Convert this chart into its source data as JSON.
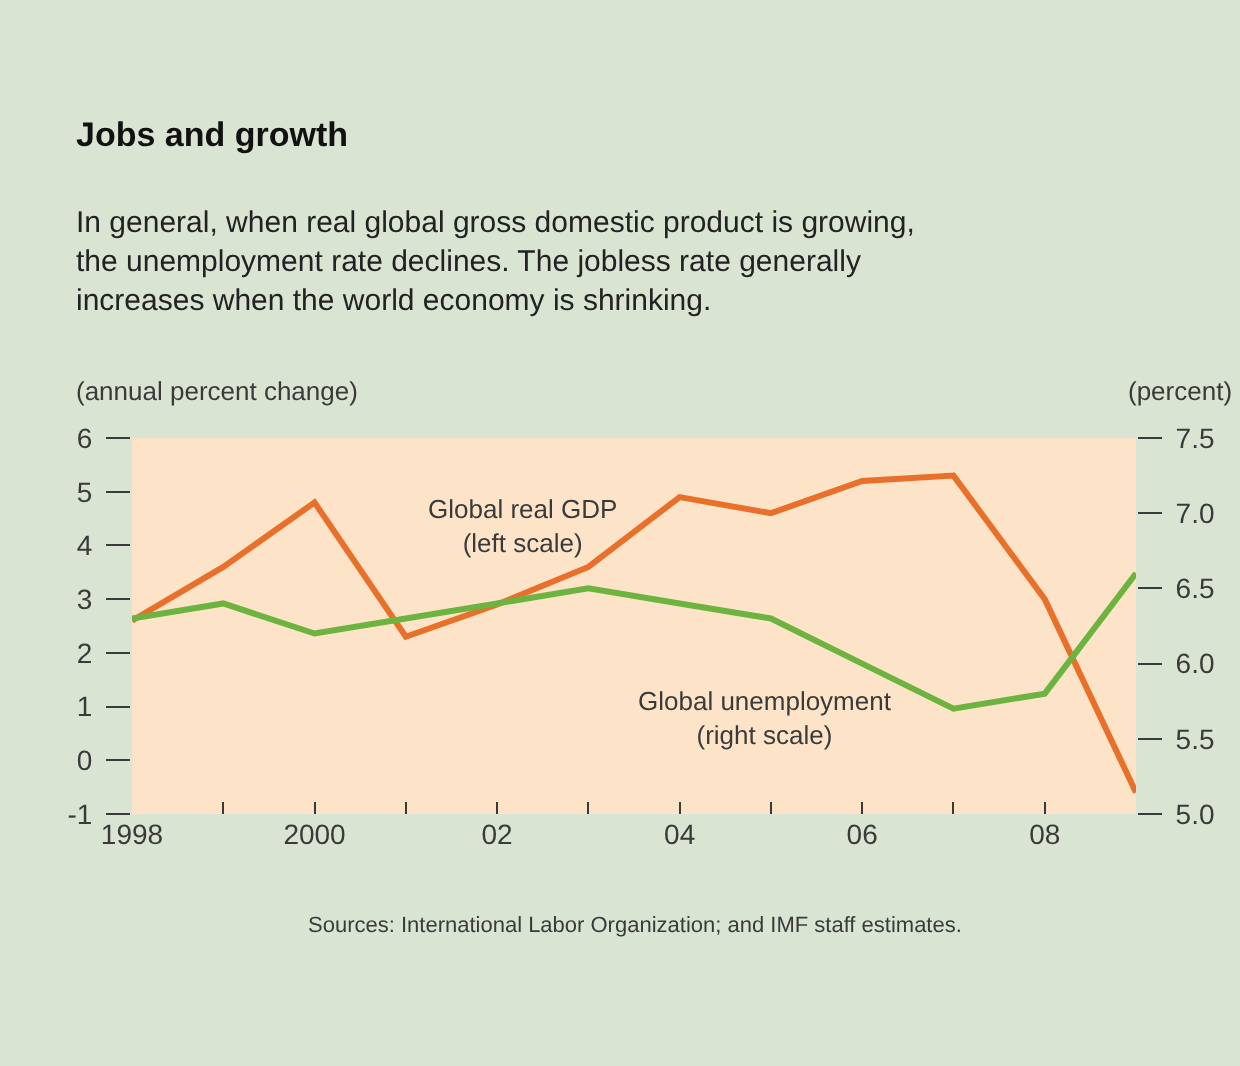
{
  "chart_data": {
    "type": "line",
    "title": "Jobs and growth",
    "subtitle": "In general, when real global gross domestic product is growing, the unemployment rate declines. The jobless rate generally increases when the world economy is shrinking.",
    "ylabel": "(annual percent change)",
    "y2label": "(percent)",
    "x": [
      1998,
      1999,
      2000,
      2001,
      2002,
      2003,
      2004,
      2005,
      2006,
      2007,
      2008,
      2009
    ],
    "series": [
      {
        "color": "#e8702a",
        "values": [
          2.6,
          3.6,
          4.8,
          2.3,
          2.9,
          3.6,
          4.9,
          4.6,
          5.2,
          5.3,
          3.0,
          -0.6
        ]
      },
      {
        "color": "#6db33f",
        "axis": "y2",
        "values": [
          6.3,
          6.4,
          6.2,
          6.3,
          6.4,
          6.5,
          6.4,
          6.3,
          6.0,
          5.7,
          5.8,
          6.6
        ]
      }
    ],
    "xlim": [
      1998,
      2009
    ],
    "xticks": [
      {
        "value": 1998,
        "label": "1998"
      },
      {
        "value": 1999,
        "label": null
      },
      {
        "value": 2000,
        "label": "2000"
      },
      {
        "value": 2001,
        "label": null
      },
      {
        "value": 2002,
        "label": "02"
      },
      {
        "value": 2003,
        "label": null
      },
      {
        "value": 2004,
        "label": "04"
      },
      {
        "value": 2005,
        "label": null
      },
      {
        "value": 2006,
        "label": "06"
      },
      {
        "value": 2007,
        "label": null
      },
      {
        "value": 2008,
        "label": "08"
      },
      {
        "value": 2009,
        "label": null
      }
    ],
    "ylim": [
      -1,
      6
    ],
    "yticks": [
      -1,
      0,
      1,
      2,
      3,
      4,
      5,
      6
    ],
    "y2lim": [
      5.0,
      7.5
    ],
    "y2ticks": [
      {
        "value": 5.0,
        "label": "5.0"
      },
      {
        "value": 5.5,
        "label": "5.5"
      },
      {
        "value": 6.0,
        "label": "6.0"
      },
      {
        "value": 6.5,
        "label": "6.5"
      },
      {
        "value": 7.0,
        "label": "7.0"
      },
      {
        "value": 7.5,
        "label": "7.5"
      }
    ],
    "annotations": [
      "Global real GDP\n(left scale)",
      "Global unemployment\n(right scale)",
      "Sources: International Labor Organization; and IMF staff estimates."
    ],
    "grid": false,
    "marker": "none",
    "line_style": "solid"
  }
}
